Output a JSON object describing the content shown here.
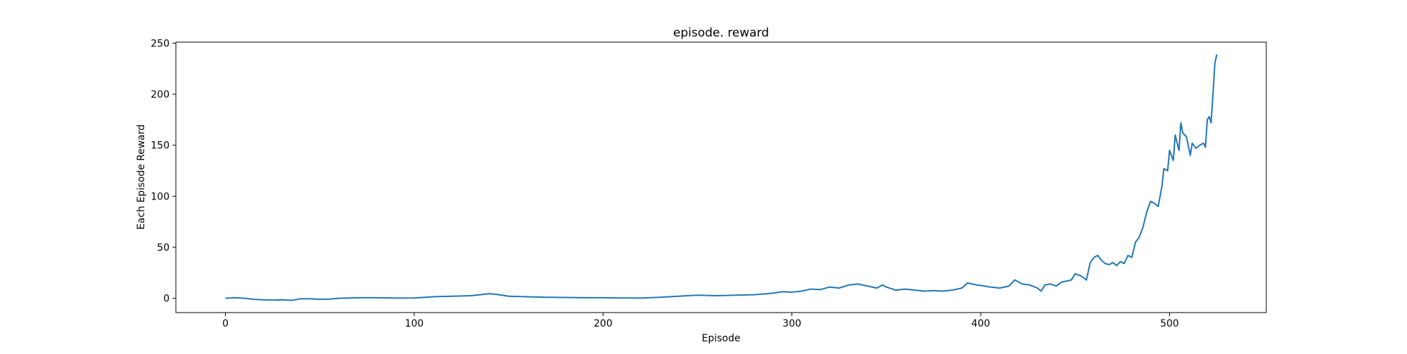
{
  "chart_data": {
    "type": "line",
    "title": "episode. reward",
    "xlabel": "Episode",
    "ylabel": "Each Episode Reward",
    "x": [
      0,
      5,
      10,
      15,
      20,
      25,
      30,
      35,
      40,
      45,
      50,
      55,
      60,
      65,
      70,
      75,
      80,
      90,
      100,
      110,
      120,
      130,
      140,
      145,
      150,
      160,
      170,
      180,
      190,
      200,
      210,
      220,
      230,
      240,
      250,
      260,
      270,
      280,
      290,
      295,
      300,
      305,
      310,
      315,
      320,
      325,
      330,
      335,
      340,
      345,
      348,
      350,
      355,
      360,
      365,
      370,
      375,
      380,
      385,
      390,
      393,
      398,
      402,
      405,
      410,
      415,
      418,
      422,
      426,
      430,
      432,
      434,
      437,
      440,
      443,
      446,
      448,
      450,
      453,
      456,
      458,
      460,
      462,
      464,
      466,
      468,
      470,
      472,
      474,
      476,
      478,
      480,
      482,
      484,
      486,
      488,
      490,
      492,
      494,
      496,
      497,
      499,
      500,
      502,
      503,
      505,
      506,
      507,
      509,
      511,
      512,
      514,
      516,
      518,
      519,
      520,
      521,
      522,
      523,
      524,
      525
    ],
    "values": [
      0,
      0.5,
      0,
      -1,
      -1.5,
      -1.8,
      -1.5,
      -2,
      -0.5,
      -0.5,
      -1,
      -0.8,
      0,
      0.2,
      0.5,
      0.5,
      0.5,
      0.2,
      0.3,
      1.5,
      2,
      2.5,
      4.5,
      3.5,
      2,
      1.5,
      1,
      0.8,
      0.5,
      0.5,
      0.3,
      0.2,
      1,
      2,
      3,
      2.5,
      3,
      3.5,
      5,
      6.5,
      6,
      7,
      9,
      8.5,
      11,
      10,
      13,
      14,
      12,
      10,
      13,
      11,
      8,
      9,
      8,
      7,
      7.5,
      7,
      8,
      10,
      15,
      13,
      12,
      11,
      10,
      12,
      18,
      14,
      13,
      10,
      7,
      13,
      14,
      12,
      16,
      17,
      18,
      24,
      22,
      18,
      35,
      40,
      42,
      37,
      34,
      33,
      35,
      32,
      36,
      34,
      42,
      40,
      55,
      60,
      70,
      85,
      95,
      93,
      90,
      110,
      127,
      125,
      145,
      135,
      160,
      145,
      172,
      162,
      158,
      140,
      152,
      147,
      150,
      152,
      148,
      175,
      178,
      172,
      200,
      230,
      239
    ],
    "color": "#1f77b4",
    "xlim": [
      -26.25,
      551.25
    ],
    "ylim": [
      -14,
      251
    ],
    "xticks": [
      0,
      100,
      200,
      300,
      400,
      500
    ],
    "yticks": [
      0,
      50,
      100,
      150,
      200,
      250
    ]
  }
}
